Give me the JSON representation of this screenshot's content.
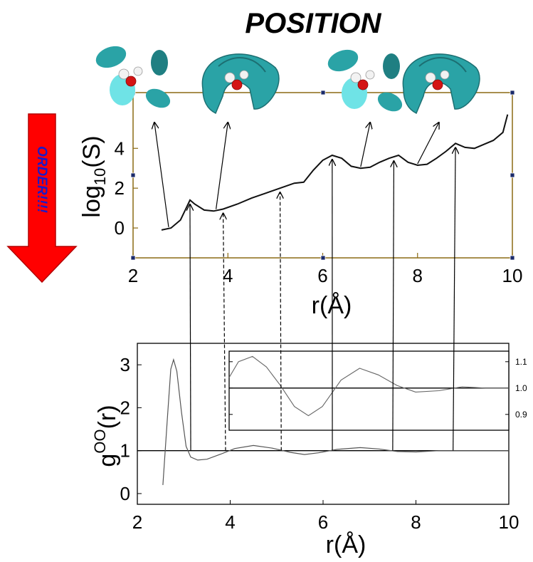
{
  "title": "POSITION",
  "order_arrow": {
    "label": "ORDER!!!!",
    "fill": "#ff0000",
    "stroke": "#b30000",
    "text_color": "#1a1ac8"
  },
  "iso_color": "#2aa3a6",
  "chart_data": [
    {
      "type": "line",
      "name": "entropy",
      "xlabel": "r(Å)",
      "ylabel_main": "log",
      "ylabel_sub": "10",
      "ylabel_paren": "(S)",
      "xlim": [
        2,
        10
      ],
      "ylim": [
        -1.5,
        6.8
      ],
      "xticks": [
        "2",
        "4",
        "6",
        "8",
        "10"
      ],
      "yticks": [
        "0",
        "2",
        "4"
      ],
      "frame_color": "#8b6a14",
      "series": [
        {
          "x": [
            2.6,
            2.8,
            3.0,
            3.1,
            3.2,
            3.3,
            3.5,
            3.7,
            3.9,
            4.2,
            4.5,
            4.8,
            5.1,
            5.4,
            5.6,
            5.8,
            6.0,
            6.2,
            6.4,
            6.6,
            6.8,
            7.0,
            7.2,
            7.4,
            7.6,
            7.8,
            8.0,
            8.2,
            8.4,
            8.6,
            8.8,
            9.0,
            9.2,
            9.4,
            9.6,
            9.8,
            9.9
          ],
          "y": [
            -0.1,
            0.0,
            0.4,
            0.9,
            1.4,
            1.2,
            0.9,
            0.85,
            0.95,
            1.2,
            1.5,
            1.75,
            2.0,
            2.25,
            2.3,
            2.9,
            3.4,
            3.65,
            3.5,
            3.1,
            3.0,
            3.05,
            3.3,
            3.5,
            3.65,
            3.3,
            3.15,
            3.2,
            3.5,
            3.85,
            4.25,
            4.05,
            4.0,
            4.2,
            4.4,
            4.8,
            5.7
          ]
        }
      ]
    },
    {
      "type": "line",
      "name": "rdf",
      "xlabel": "r(Å)",
      "ylabel_main": "g",
      "ylabel_sup": "OO",
      "ylabel_paren": "(r)",
      "xlim": [
        2,
        10
      ],
      "ylim": [
        -0.25,
        3.5
      ],
      "xticks": [
        "2",
        "4",
        "6",
        "8",
        "10"
      ],
      "yticks": [
        "0",
        "1",
        "2",
        "3"
      ],
      "reference_line": 1.0,
      "series": [
        {
          "x": [
            2.55,
            2.65,
            2.72,
            2.78,
            2.85,
            2.95,
            3.05,
            3.15,
            3.3,
            3.5,
            3.8,
            4.1,
            4.5,
            4.9,
            5.3,
            5.6,
            5.9,
            6.3,
            6.8,
            7.2,
            7.6,
            8.0,
            8.5,
            9.0,
            10.0
          ],
          "y": [
            0.2,
            1.8,
            2.9,
            3.12,
            2.85,
            1.9,
            1.1,
            0.85,
            0.78,
            0.8,
            0.92,
            1.05,
            1.12,
            1.06,
            0.96,
            0.91,
            0.95,
            1.03,
            1.07,
            1.04,
            0.98,
            0.97,
            1.0,
            1.0,
            1.0
          ]
        }
      ],
      "inset": {
        "xlim": [
          4.0,
          10.0
        ],
        "ylim": [
          0.84,
          1.14
        ],
        "yticks": [
          "1.1",
          "1.0",
          "0.9"
        ],
        "reference_line": 1.0,
        "x": [
          4.0,
          4.2,
          4.5,
          4.8,
          5.1,
          5.4,
          5.7,
          6.0,
          6.4,
          6.8,
          7.2,
          7.6,
          8.0,
          8.5,
          9.0,
          9.5,
          10.0
        ],
        "y": [
          1.04,
          1.1,
          1.12,
          1.08,
          1.01,
          0.93,
          0.895,
          0.93,
          1.03,
          1.075,
          1.05,
          1.01,
          0.985,
          0.99,
          1.005,
          1.0,
          1.0
        ]
      }
    }
  ],
  "peak_links": [
    {
      "x1": 3.2,
      "x2": 3.15,
      "style": "solid"
    },
    {
      "x1": 3.9,
      "x2": 3.9,
      "style": "dashed"
    },
    {
      "x1": 5.1,
      "x2": 5.1,
      "style": "dashed"
    },
    {
      "x1": 6.2,
      "x2": 6.2,
      "style": "solid"
    },
    {
      "x1": 7.5,
      "x2": 7.5,
      "style": "solid"
    },
    {
      "x1": 8.8,
      "x2": 8.8,
      "style": "solid"
    }
  ],
  "density_maps": [
    {
      "shape": "scattered-lobes",
      "from_x": 2.75,
      "point_x": 2.45,
      "point_y": 0.0
    },
    {
      "shape": "cradle",
      "from_x": 3.75,
      "point_x": 4.0,
      "point_y": 0.9
    },
    {
      "shape": "scattered-lobes",
      "from_x": 6.8,
      "point_x": 7.0,
      "point_y": 3.05
    },
    {
      "shape": "cradle",
      "from_x": 8.0,
      "point_x": 8.45,
      "point_y": 3.2
    }
  ]
}
